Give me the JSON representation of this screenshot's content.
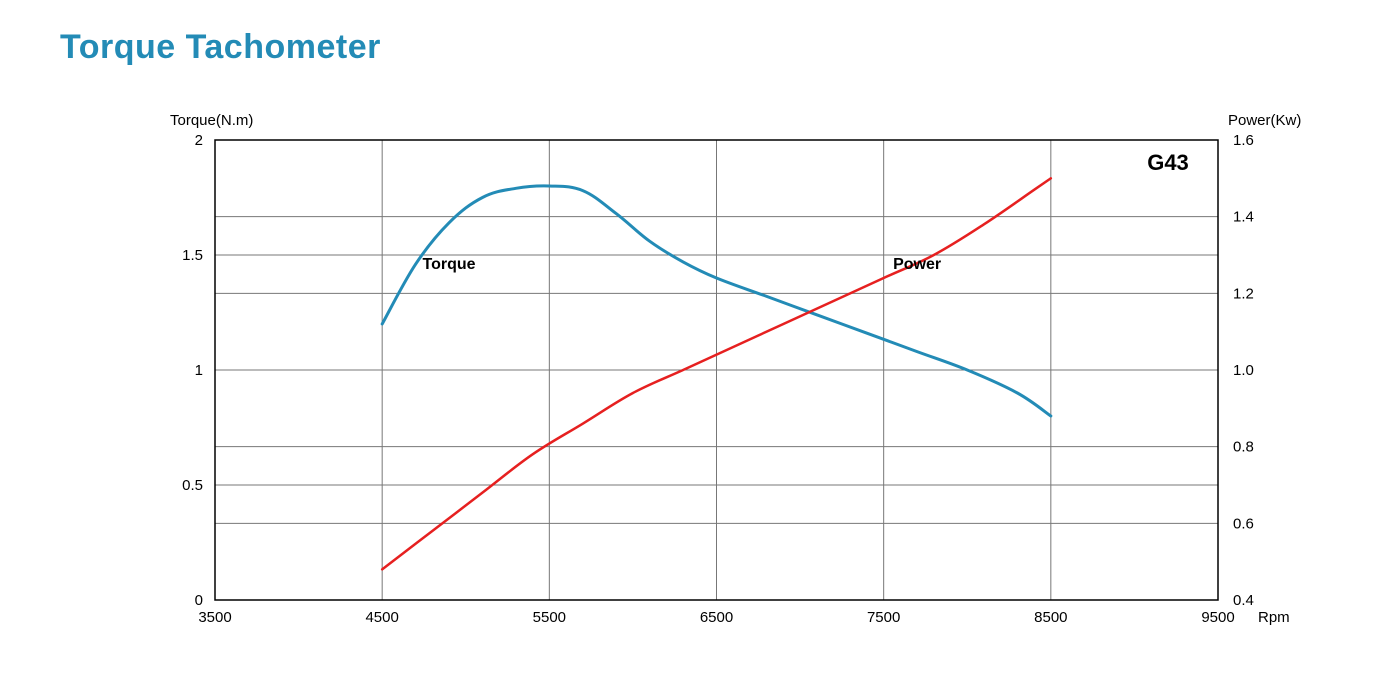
{
  "title": "Torque Tachometer",
  "chart": {
    "type": "line-dual-axis",
    "model_label": "G43",
    "model_label_fontsize": 22,
    "model_label_fontweight": "700",
    "background_color": "#ffffff",
    "plot_border_color": "#000000",
    "grid_color": "#777777",
    "grid_width": 1,
    "x_axis": {
      "label": "Rpm",
      "label_fontsize": 15,
      "min": 3500,
      "max": 9500,
      "ticks": [
        3500,
        4500,
        5500,
        6500,
        7500,
        8500,
        9500
      ],
      "tick_fontsize": 15
    },
    "y_left": {
      "label": "Torque(N.m)",
      "label_fontsize": 15,
      "min": 0,
      "max": 2,
      "ticks": [
        0,
        0.5,
        1,
        1.5,
        2
      ],
      "tick_labels": [
        "0",
        "0.5",
        "1",
        "1.5",
        "2"
      ],
      "tick_fontsize": 15
    },
    "y_right": {
      "label": "Power(Kw)",
      "label_fontsize": 15,
      "min": 0.4,
      "max": 1.6,
      "ticks": [
        0.4,
        0.6,
        0.8,
        1.0,
        1.2,
        1.4,
        1.6
      ],
      "tick_labels": [
        "0.4",
        "0.6",
        "0.8",
        "1.0",
        "1.2",
        "1.4",
        "1.6"
      ],
      "tick_fontsize": 15
    },
    "series": {
      "torque": {
        "axis": "left",
        "label": "Torque",
        "label_fontsize": 16,
        "label_fontweight": "700",
        "label_at_x": 4900,
        "label_at_yfrac": 0.72,
        "color": "#238bb6",
        "line_width": 3,
        "points": [
          [
            4500,
            1.2
          ],
          [
            4700,
            1.46
          ],
          [
            4900,
            1.64
          ],
          [
            5100,
            1.75
          ],
          [
            5300,
            1.79
          ],
          [
            5500,
            1.8
          ],
          [
            5700,
            1.78
          ],
          [
            5900,
            1.68
          ],
          [
            6100,
            1.56
          ],
          [
            6300,
            1.47
          ],
          [
            6500,
            1.4
          ],
          [
            6800,
            1.32
          ],
          [
            7100,
            1.24
          ],
          [
            7400,
            1.16
          ],
          [
            7700,
            1.08
          ],
          [
            8000,
            1.0
          ],
          [
            8300,
            0.9
          ],
          [
            8500,
            0.8
          ]
        ]
      },
      "power": {
        "axis": "right",
        "label": "Power",
        "label_fontsize": 16,
        "label_fontweight": "700",
        "label_at_x": 7700,
        "label_at_yfrac": 0.72,
        "color": "#e62020",
        "line_width": 2.5,
        "points": [
          [
            4500,
            0.48
          ],
          [
            4800,
            0.58
          ],
          [
            5100,
            0.68
          ],
          [
            5400,
            0.78
          ],
          [
            5700,
            0.86
          ],
          [
            6000,
            0.94
          ],
          [
            6300,
            1.0
          ],
          [
            6600,
            1.06
          ],
          [
            6900,
            1.12
          ],
          [
            7200,
            1.18
          ],
          [
            7500,
            1.24
          ],
          [
            7800,
            1.3
          ],
          [
            8100,
            1.38
          ],
          [
            8400,
            1.47
          ],
          [
            8500,
            1.5
          ]
        ]
      }
    }
  }
}
